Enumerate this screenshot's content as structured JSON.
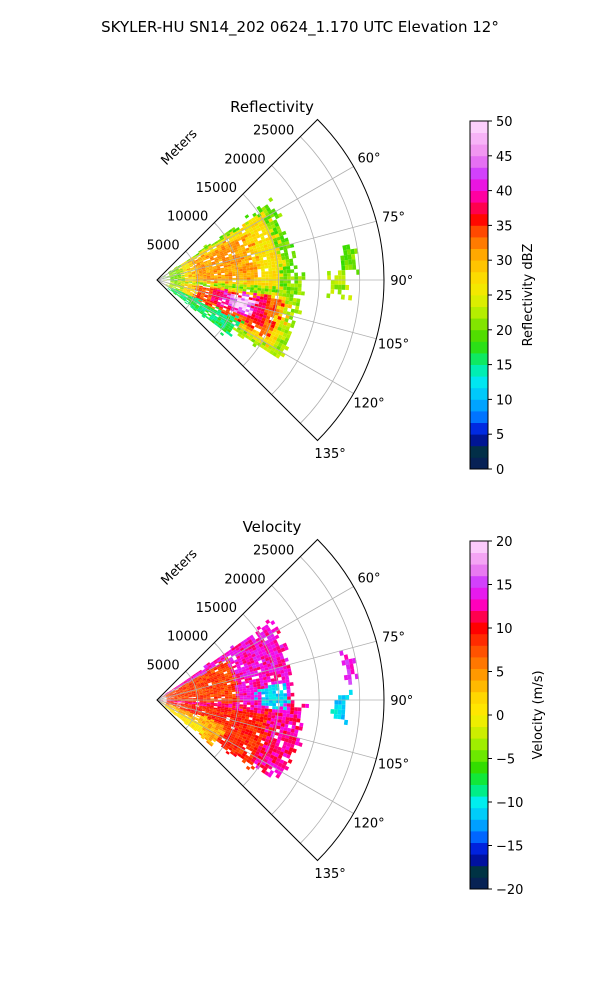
{
  "figure": {
    "title": "SKYLER-HU  SN14_202  0624_1.170 UTC Elevation 12°"
  },
  "colors": {
    "grid": "#b0b0b0",
    "frame": "#000000"
  },
  "chart_data": [
    {
      "type": "heatmap",
      "projection": "polar-sector",
      "title": "Reflectivity",
      "range_label": "Meters",
      "range_ticks": [
        5000,
        10000,
        15000,
        20000,
        25000
      ],
      "range_tick_labels": [
        "5000",
        "10000",
        "15000",
        "20000",
        "25000"
      ],
      "r_max": 28000,
      "azimuth_range": [
        45,
        135
      ],
      "azimuth_ticks": [
        60,
        75,
        90,
        105,
        120,
        135
      ],
      "azimuth_tick_labels": [
        "60°",
        "75°",
        "90°",
        "105°",
        "120°",
        "135°"
      ],
      "grid": true,
      "colorbar": {
        "label": "Reflectivity dBZ",
        "range": [
          0,
          50
        ],
        "ticks": [
          0,
          5,
          10,
          15,
          20,
          25,
          30,
          35,
          40,
          45,
          50
        ],
        "tick_labels": [
          "0",
          "5",
          "10",
          "15",
          "20",
          "25",
          "30",
          "35",
          "40",
          "45",
          "50"
        ],
        "colormap": "pyart_HomeyerRainbow",
        "stops": [
          [
            0,
            "#0a1a5c"
          ],
          [
            3,
            "#003344"
          ],
          [
            5,
            "#0000cc"
          ],
          [
            7,
            "#0066ff"
          ],
          [
            10,
            "#00bbff"
          ],
          [
            13,
            "#00eeee"
          ],
          [
            15,
            "#00ee88"
          ],
          [
            18,
            "#33dd00"
          ],
          [
            20,
            "#66dd00"
          ],
          [
            22,
            "#aaee00"
          ],
          [
            25,
            "#eeee00"
          ],
          [
            28,
            "#ffd700"
          ],
          [
            31,
            "#ffa500"
          ],
          [
            34,
            "#ff5000"
          ],
          [
            36,
            "#ff0000"
          ],
          [
            38,
            "#ff0066"
          ],
          [
            40,
            "#ff00cc"
          ],
          [
            42,
            "#cc33ff"
          ],
          [
            45,
            "#ee88ee"
          ],
          [
            50,
            "#ffddff"
          ]
        ]
      },
      "echo_regions": [
        {
          "az": [
            56,
            96
          ],
          "r": [
            1500,
            16500
          ],
          "value": 20
        },
        {
          "az": [
            58,
            93
          ],
          "r": [
            3000,
            15000
          ],
          "value": 27
        },
        {
          "az": [
            62,
            90
          ],
          "r": [
            4500,
            12000
          ],
          "value": 31
        },
        {
          "az": [
            95,
            122
          ],
          "r": [
            1500,
            17500
          ],
          "value": 22
        },
        {
          "az": [
            97,
            120
          ],
          "r": [
            3000,
            16000
          ],
          "value": 28
        },
        {
          "az": [
            98,
            117
          ],
          "r": [
            5000,
            15000
          ],
          "value": 34
        },
        {
          "az": [
            99,
            112
          ],
          "r": [
            7000,
            13500
          ],
          "value": 38
        },
        {
          "az": [
            101,
            109
          ],
          "r": [
            9000,
            12000
          ],
          "value": 44
        },
        {
          "az": [
            102,
            107
          ],
          "r": [
            10000,
            11500
          ],
          "value": 49
        },
        {
          "az": [
            116,
            127
          ],
          "r": [
            2000,
            11000
          ],
          "value": 16
        },
        {
          "az": [
            88,
            95
          ],
          "r": [
            16000,
            17500
          ],
          "value": 21
        },
        {
          "az": [
            80,
            86
          ],
          "r": [
            23000,
            24500
          ],
          "value": 20
        },
        {
          "az": [
            88,
            93
          ],
          "r": [
            21500,
            23000
          ],
          "value": 22
        }
      ]
    },
    {
      "type": "heatmap",
      "projection": "polar-sector",
      "title": "Velocity",
      "range_label": "Meters",
      "range_ticks": [
        5000,
        10000,
        15000,
        20000,
        25000
      ],
      "range_tick_labels": [
        "5000",
        "10000",
        "15000",
        "20000",
        "25000"
      ],
      "r_max": 28000,
      "azimuth_range": [
        45,
        135
      ],
      "azimuth_ticks": [
        60,
        75,
        90,
        105,
        120,
        135
      ],
      "azimuth_tick_labels": [
        "60°",
        "75°",
        "90°",
        "105°",
        "120°",
        "135°"
      ],
      "grid": true,
      "colorbar": {
        "label": "Velocity (m/s)",
        "range": [
          -20,
          20
        ],
        "ticks": [
          -20,
          -15,
          -10,
          -5,
          0,
          5,
          10,
          15,
          20
        ],
        "tick_labels": [
          "−20",
          "−15",
          "−10",
          "−5",
          "0",
          "5",
          "10",
          "15",
          "20"
        ],
        "colormap": "pyart_BuDRd18",
        "stops": [
          [
            -20,
            "#0a1a5c"
          ],
          [
            -18,
            "#003344"
          ],
          [
            -16,
            "#0000cc"
          ],
          [
            -14,
            "#0066ff"
          ],
          [
            -12,
            "#00bbff"
          ],
          [
            -10,
            "#00eeee"
          ],
          [
            -8,
            "#00ee55"
          ],
          [
            -6,
            "#33dd00"
          ],
          [
            -4,
            "#88ee00"
          ],
          [
            -2,
            "#ccee00"
          ],
          [
            0,
            "#ffee00"
          ],
          [
            2,
            "#ffd700"
          ],
          [
            4,
            "#ffaa00"
          ],
          [
            6,
            "#ff7700"
          ],
          [
            8,
            "#ff4000"
          ],
          [
            10,
            "#ff0000"
          ],
          [
            12,
            "#ff0077"
          ],
          [
            13,
            "#ff00dd"
          ],
          [
            15,
            "#cc33ff"
          ],
          [
            17,
            "#ee88ee"
          ],
          [
            20,
            "#ffddff"
          ]
        ]
      },
      "echo_regions": [
        {
          "az": [
            55,
            95
          ],
          "r": [
            1000,
            16500
          ],
          "value": 13
        },
        {
          "az": [
            60,
            92
          ],
          "r": [
            1000,
            9500
          ],
          "value": 8
        },
        {
          "az": [
            93,
            122
          ],
          "r": [
            1000,
            17500
          ],
          "value": 12
        },
        {
          "az": [
            96,
            124
          ],
          "r": [
            1000,
            13500
          ],
          "value": 9
        },
        {
          "az": [
            110,
            128
          ],
          "r": [
            1000,
            8500
          ],
          "value": 4
        },
        {
          "az": [
            118,
            128
          ],
          "r": [
            1000,
            6500
          ],
          "value": 1
        },
        {
          "az": [
            83,
            92
          ],
          "r": [
            12500,
            15500
          ],
          "value": -11
        },
        {
          "az": [
            88,
            95
          ],
          "r": [
            22000,
            23000
          ],
          "value": -11
        },
        {
          "az": [
            77,
            83
          ],
          "r": [
            23500,
            24500
          ],
          "value": 14
        }
      ]
    }
  ]
}
